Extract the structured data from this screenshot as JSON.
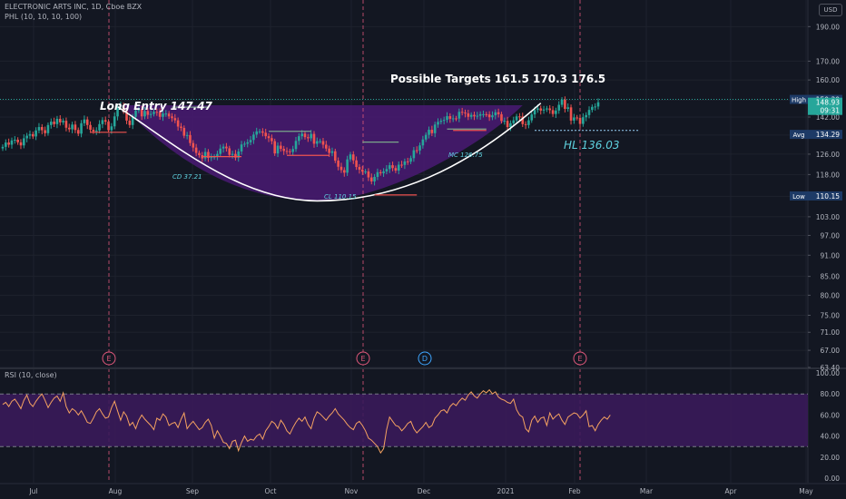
{
  "header": {
    "title": "ELECTRONIC ARTS INC, 1D, Cboe BZX",
    "indicator": "PHL (10, 10, 10, 100)",
    "currency": "USD"
  },
  "rsi": {
    "title": "RSI (10, close)",
    "upper": 80,
    "lower": 30,
    "tick_labels": [
      "100.00",
      "80.00",
      "60.00",
      "40.00",
      "20.00",
      "0.00"
    ],
    "values": [
      70,
      72,
      68,
      73,
      75,
      71,
      66,
      74,
      79,
      71,
      68,
      73,
      77,
      80,
      74,
      67,
      72,
      76,
      78,
      73,
      81,
      68,
      62,
      66,
      64,
      60,
      64,
      59,
      53,
      52,
      57,
      63,
      66,
      61,
      57,
      58,
      67,
      73,
      64,
      55,
      63,
      59,
      50,
      53,
      47,
      55,
      60,
      56,
      53,
      50,
      46,
      57,
      55,
      61,
      58,
      50,
      52,
      53,
      48,
      56,
      62,
      47,
      51,
      54,
      50,
      46,
      48,
      53,
      56,
      50,
      38,
      45,
      40,
      34,
      33,
      28,
      35,
      36,
      26,
      34,
      40,
      35,
      37,
      36,
      40,
      42,
      37,
      45,
      49,
      54,
      52,
      47,
      55,
      51,
      45,
      42,
      48,
      53,
      57,
      54,
      58,
      51,
      47,
      57,
      63,
      61,
      58,
      55,
      59,
      62,
      66,
      61,
      58,
      55,
      51,
      48,
      46,
      52,
      54,
      50,
      45,
      38,
      36,
      33,
      30,
      24,
      28,
      46,
      58,
      54,
      50,
      49,
      45,
      48,
      52,
      54,
      47,
      43,
      46,
      49,
      53,
      48,
      50,
      57,
      60,
      64,
      65,
      62,
      68,
      71,
      69,
      73,
      76,
      74,
      79,
      82,
      78,
      76,
      80,
      83,
      81,
      84,
      80,
      82,
      77,
      75,
      74,
      72,
      71,
      75,
      65,
      60,
      58,
      47,
      44,
      55,
      59,
      53,
      57,
      58,
      50,
      62,
      56,
      59,
      61,
      55,
      51,
      58,
      60,
      62,
      61,
      57,
      60,
      64,
      49,
      50,
      45,
      51,
      55,
      58,
      56,
      60
    ]
  },
  "chart_data": {
    "type": "candlestick",
    "x_tick_labels": [
      "Jul",
      "Aug",
      "Sep",
      "Oct",
      "Nov",
      "Dec",
      "2021",
      "Feb",
      "Mar",
      "Apr",
      "May"
    ],
    "y_tick_labels": [
      "190.00",
      "170.00",
      "160.00",
      "150.00",
      "142.00",
      "134.00",
      "126.00",
      "118.00",
      "110.00",
      "103.00",
      "97.00",
      "91.00",
      "85.00",
      "80.00",
      "75.00",
      "71.00",
      "67.00",
      "63.40"
    ],
    "ylim": [
      63.4,
      207
    ],
    "scale": "log",
    "price_labels": {
      "high": {
        "label": "High",
        "value": "150.30"
      },
      "last": {
        "value": "148.93",
        "countdown": "09:31"
      },
      "avg": {
        "label": "Avg",
        "value": "134.29"
      },
      "low": {
        "label": "Low",
        "value": "110.15"
      }
    },
    "closes": [
      129.0,
      130.8,
      129.9,
      131.7,
      132.0,
      130.9,
      129.6,
      132.6,
      133.7,
      134.4,
      133.4,
      136.0,
      137.5,
      136.1,
      134.8,
      138.4,
      139.9,
      138.8,
      141.2,
      139.6,
      140.3,
      137.2,
      136.5,
      138.6,
      136.2,
      134.6,
      139.2,
      140.9,
      138.4,
      136.3,
      135.6,
      136.0,
      138.8,
      140.6,
      139.9,
      136.1,
      137.8,
      142.3,
      146.8,
      147.5,
      144.6,
      140.4,
      138.4,
      142.1,
      145.0,
      145.6,
      142.3,
      144.8,
      143.0,
      143.4,
      144.4,
      144.2,
      142.1,
      143.6,
      143.6,
      142.3,
      141.5,
      140.5,
      137.7,
      137.1,
      133.7,
      134.0,
      130.6,
      128.7,
      126.5,
      125.6,
      124.3,
      126.9,
      124.5,
      124.8,
      125.0,
      126.1,
      128.3,
      129.1,
      128.4,
      125.7,
      126.1,
      124.6,
      127.1,
      130.0,
      130.3,
      130.9,
      131.9,
      134.2,
      135.6,
      135.6,
      135.0,
      133.5,
      132.7,
      131.4,
      126.3,
      129.5,
      128.2,
      127.3,
      127.2,
      126.9,
      128.1,
      131.5,
      133.5,
      134.6,
      133.1,
      132.6,
      134.5,
      130.3,
      131.4,
      131.4,
      129.9,
      128.3,
      126.5,
      127.2,
      123.4,
      121.0,
      119.7,
      118.7,
      123.9,
      125.9,
      123.5,
      120.9,
      119.9,
      119.1,
      119.2,
      116.9,
      115.4,
      117.1,
      118.9,
      118.5,
      119.2,
      120.1,
      121.6,
      120.5,
      119.5,
      121.8,
      121.7,
      123.1,
      123.0,
      124.4,
      127.6,
      127.5,
      129.6,
      132.1,
      134.1,
      136.3,
      134.8,
      138.6,
      139.8,
      140.3,
      140.7,
      142.4,
      141.2,
      141.4,
      141.3,
      144.4,
      144.1,
      143.7,
      142.1,
      143.0,
      142.3,
      142.6,
      143.3,
      143.3,
      143.2,
      141.9,
      142.8,
      144.2,
      143.3,
      140.2,
      140.3,
      137.5,
      139.2,
      140.5,
      142.3,
      142.2,
      138.8,
      138.4,
      140.5,
      143.2,
      145.3,
      146.0,
      145.0,
      145.5,
      146.0,
      145.2,
      143.4,
      145.0,
      147.7,
      150.2,
      145.8,
      146.5,
      140.4,
      141.8,
      141.6,
      138.9,
      141.9,
      142.9,
      145.3,
      146.7,
      146.9,
      148.9
    ],
    "events": [
      {
        "label": "E",
        "kind": "earnings"
      },
      {
        "label": "E",
        "kind": "earnings"
      },
      {
        "label": "D",
        "kind": "dividend"
      },
      {
        "label": "E",
        "kind": "earnings"
      }
    ],
    "annotations": {
      "long_entry": "Long Entry 147.47",
      "targets": "Possible Targets  161.5  170.3   176.5",
      "hl": "HL 136.03",
      "cd": "CD 37.21",
      "cl": "CL 110.15",
      "mc": "MC 126.75"
    }
  },
  "colors": {
    "background": "#131722",
    "up": "#26a69a",
    "down": "#ef5350",
    "cup_fill": "#4a1a73",
    "rsi_fill": "#3a1a5a",
    "rsi_line": "#f5a261",
    "grid": "#1e222d",
    "event_line": "#e0587b",
    "cyan_text": "#5fd3e0",
    "label_box": "#1d3a66"
  }
}
